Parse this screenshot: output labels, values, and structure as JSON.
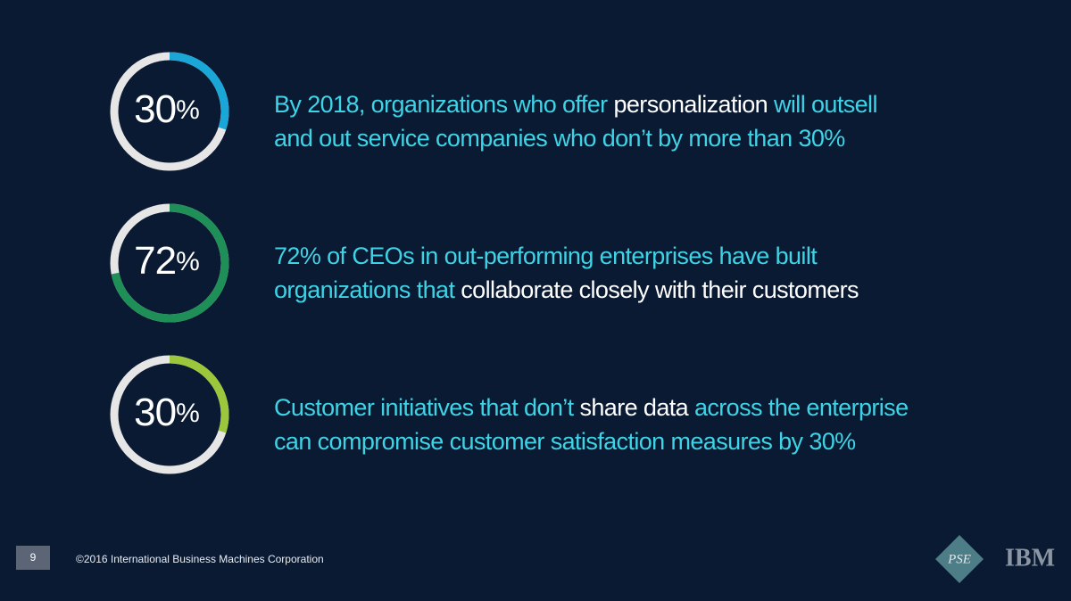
{
  "stats": [
    {
      "value": 30,
      "unit": "%",
      "color": "#1aa7d8",
      "lines": [
        [
          {
            "text": "By 2018, organizations who offer ",
            "emphasis": false
          },
          {
            "text": "personalization",
            "emphasis": true
          },
          {
            "text": " will outsell",
            "emphasis": false
          }
        ],
        [
          {
            "text": "and out service companies who don’t by more than 30%",
            "emphasis": false
          }
        ]
      ]
    },
    {
      "value": 72,
      "unit": "%",
      "color": "#1f8f58",
      "lines": [
        [
          {
            "text": "72% of CEOs in out-performing enterprises have built",
            "emphasis": false
          }
        ],
        [
          {
            "text": "organizations that ",
            "emphasis": false
          },
          {
            "text": "collaborate closely with their customers",
            "emphasis": true
          }
        ]
      ]
    },
    {
      "value": 30,
      "unit": "%",
      "color": "#9cc63c",
      "lines": [
        [
          {
            "text": "Customer initiatives that don’t ",
            "emphasis": false
          },
          {
            "text": "share data",
            "emphasis": true
          },
          {
            "text": " across the enterprise",
            "emphasis": false
          }
        ],
        [
          {
            "text": "can compromise customer satisfaction measures by 30%",
            "emphasis": false
          }
        ]
      ]
    }
  ],
  "footer": {
    "page": "9",
    "copyright": "©2016 International Business Machines Corporation",
    "logos": [
      "PSE",
      "IBM"
    ]
  }
}
